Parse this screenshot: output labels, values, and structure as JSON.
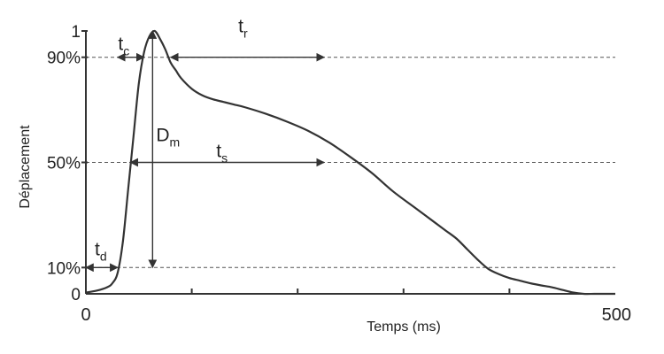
{
  "chart_data": {
    "type": "line",
    "title": "",
    "xlabel": "Temps (ms)",
    "ylabel": "Déplacement",
    "xlim": [
      0,
      500
    ],
    "ylim": [
      0,
      1
    ],
    "x_tick_labels": [
      {
        "value": 0,
        "label": "0"
      },
      {
        "value": 500,
        "label": "500"
      }
    ],
    "x_minor_ticks": [
      100,
      200,
      300,
      400
    ],
    "y_tick_labels": [
      {
        "value": 0,
        "label": "0"
      },
      {
        "value": 0.1,
        "label": "10%"
      },
      {
        "value": 0.5,
        "label": "50%"
      },
      {
        "value": 0.9,
        "label": "90%"
      },
      {
        "value": 1,
        "label": "1"
      }
    ],
    "reference_lines": [
      0.1,
      0.5,
      0.9
    ],
    "series": [
      {
        "x": [
          0,
          10,
          20,
          25,
          30,
          35,
          40,
          45,
          50,
          55,
          60,
          65,
          70,
          75,
          80,
          85,
          90,
          100,
          110,
          120,
          130,
          140,
          150,
          170,
          190,
          210,
          230,
          250,
          270,
          290,
          310,
          320,
          330,
          340,
          350,
          360,
          370,
          380,
          390,
          400,
          410,
          420,
          430,
          440,
          450,
          460,
          470,
          480,
          490,
          500
        ],
        "y": [
          0.005,
          0.012,
          0.025,
          0.04,
          0.08,
          0.2,
          0.4,
          0.6,
          0.8,
          0.92,
          0.98,
          1.0,
          0.97,
          0.93,
          0.88,
          0.85,
          0.82,
          0.78,
          0.755,
          0.74,
          0.73,
          0.72,
          0.71,
          0.685,
          0.655,
          0.62,
          0.575,
          0.52,
          0.46,
          0.39,
          0.33,
          0.3,
          0.27,
          0.24,
          0.21,
          0.17,
          0.13,
          0.095,
          0.075,
          0.06,
          0.05,
          0.04,
          0.032,
          0.025,
          0.015,
          0.005,
          0.0,
          0.0,
          0.0,
          0.0
        ]
      }
    ],
    "annotations": [
      {
        "label": "t",
        "subscript": "d",
        "type": "horizontal",
        "x1": 0,
        "x2": 30,
        "y": 0.1
      },
      {
        "label": "t",
        "subscript": "c",
        "type": "horizontal",
        "x1": 30,
        "x2": 55,
        "y": 0.9
      },
      {
        "label": "t",
        "subscript": "r",
        "type": "horizontal",
        "x1": 80,
        "x2": 225,
        "y": 0.9
      },
      {
        "label": "t",
        "subscript": "s",
        "type": "horizontal",
        "x1": 42,
        "x2": 225,
        "y": 0.5
      },
      {
        "label": "D",
        "subscript": "m",
        "type": "vertical",
        "x": 63,
        "y1": 0.1,
        "y2": 1.0
      }
    ]
  }
}
